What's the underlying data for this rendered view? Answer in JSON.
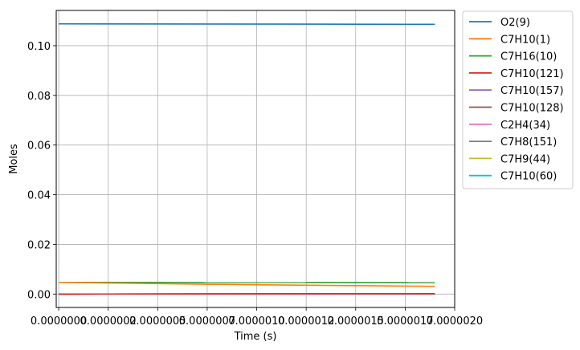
{
  "chart_data": {
    "type": "line",
    "title": "",
    "xlabel": "Time  (s)",
    "ylabel": "Moles",
    "xlim": [
      -1.25e-08,
      2e-06
    ],
    "ylim": [
      -0.0054,
      0.1142
    ],
    "xticks": [
      0.0,
      2.5e-07,
      5e-07,
      7.5e-07,
      1e-06,
      1.25e-06,
      1.5e-06,
      1.75e-06,
      2e-06
    ],
    "xtick_labels": [
      "0.0000000",
      "0.0000002",
      "0.0000005",
      "0.0000007",
      "0.0000010",
      "0.0000012",
      "0.0000015",
      "0.0000017",
      "0.0000020"
    ],
    "yticks": [
      0.0,
      0.02,
      0.04,
      0.06,
      0.08,
      0.1
    ],
    "ytick_labels": [
      "0.00",
      "0.02",
      "0.04",
      "0.06",
      "0.08",
      "0.10"
    ],
    "grid": true,
    "legend_position": "outside-right-top",
    "series": [
      {
        "name": "O2(9)",
        "color": "#1f77b4",
        "x": [
          0.0,
          1.9e-06
        ],
        "y": [
          0.1088,
          0.1086
        ]
      },
      {
        "name": "C7H10(1)",
        "color": "#ff7f0e",
        "x": [
          0.0,
          4e-07,
          8e-07,
          1.2e-06,
          1.6e-06,
          1.9e-06
        ],
        "y": [
          0.0047,
          0.0043,
          0.0039,
          0.0036,
          0.0033,
          0.0031
        ]
      },
      {
        "name": "C7H16(10)",
        "color": "#2ca02c",
        "x": [
          0.0,
          1.9e-06
        ],
        "y": [
          0.0047,
          0.0046
        ]
      },
      {
        "name": "C7H10(121)",
        "color": "#d62728",
        "x": [
          0.0,
          1.9e-06
        ],
        "y": [
          0.0,
          0.0001
        ]
      },
      {
        "name": "C7H10(157)",
        "color": "#9467bd",
        "x": [
          0.0,
          1.9e-06
        ],
        "y": [
          0.0,
          0.0001
        ]
      },
      {
        "name": "C7H10(128)",
        "color": "#8c564b",
        "x": [
          0.0,
          1.9e-06
        ],
        "y": [
          0.0,
          0.0001
        ]
      },
      {
        "name": "C2H4(34)",
        "color": "#e377c2",
        "x": [
          0.0,
          1.9e-06
        ],
        "y": [
          0.0,
          0.0001
        ]
      },
      {
        "name": "C7H8(151)",
        "color": "#7f7f7f",
        "x": [
          0.0,
          1.9e-06
        ],
        "y": [
          0.0,
          0.0001
        ]
      },
      {
        "name": "C7H9(44)",
        "color": "#bcbd22",
        "x": [
          0.0,
          1.9e-06
        ],
        "y": [
          0.0,
          0.0001
        ]
      },
      {
        "name": "C7H10(60)",
        "color": "#17becf",
        "x": [
          0.0,
          1.9e-06
        ],
        "y": [
          0.0,
          0.0001
        ]
      }
    ]
  }
}
